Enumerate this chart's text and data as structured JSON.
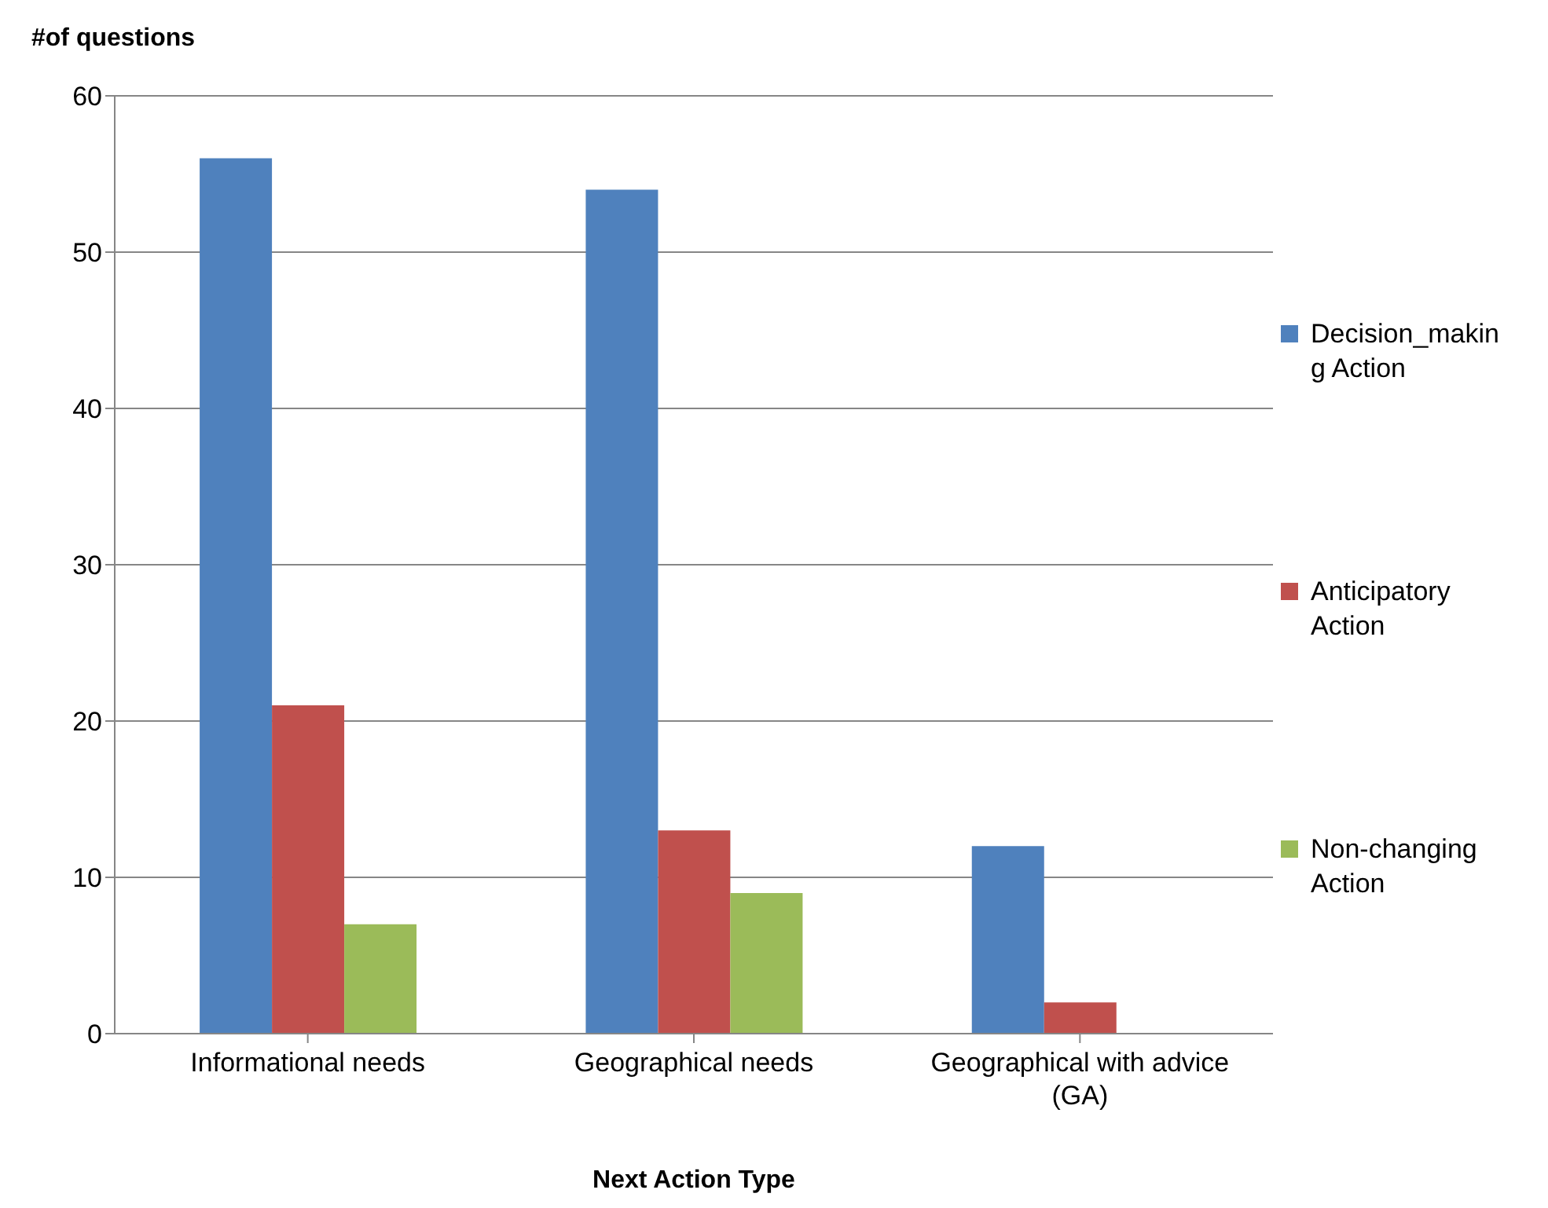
{
  "chart_data": {
    "type": "bar",
    "ylabel": "#of questions",
    "xlabel": "Next Action Type",
    "categories": [
      "Informational needs",
      "Geographical needs",
      "Geographical with advice (GA)"
    ],
    "series": [
      {
        "name": "Decision_making Action",
        "color": "#4f81bd",
        "values": [
          56,
          54,
          12
        ]
      },
      {
        "name": "Anticipatory Action",
        "color": "#c0504d",
        "values": [
          21,
          13,
          2
        ]
      },
      {
        "name": "Non-changing Action",
        "color": "#9bbb59",
        "values": [
          7,
          9,
          0
        ]
      }
    ],
    "ylim": [
      0,
      60
    ],
    "yticks": [
      0,
      10,
      20,
      30,
      40,
      50,
      60
    ],
    "grid": "y",
    "legend": "right"
  }
}
